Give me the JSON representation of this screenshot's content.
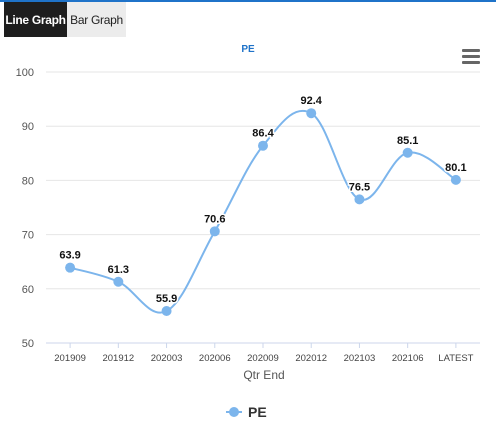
{
  "tabs": [
    {
      "label": "Line Graph",
      "active": true
    },
    {
      "label": "Bar Graph",
      "active": false
    }
  ],
  "menu_icon": "hamburger-menu-icon",
  "colors": {
    "accent": "#1f73c9",
    "series": "#7cb5ec",
    "title": "#1f73c9"
  },
  "chart_data": {
    "type": "line",
    "title": "PE",
    "xlabel": "Qtr End",
    "ylabel": "",
    "ylim": [
      50,
      100
    ],
    "yticks": [
      50,
      60,
      70,
      80,
      90,
      100
    ],
    "categories": [
      "201909",
      "201912",
      "202003",
      "202006",
      "202009",
      "202012",
      "202103",
      "202106",
      "LATEST"
    ],
    "series": [
      {
        "name": "PE",
        "values": [
          63.9,
          61.3,
          55.9,
          70.6,
          86.4,
          92.4,
          76.5,
          85.1,
          80.1
        ]
      }
    ],
    "value_labels": [
      "63.9",
      "61.3",
      "55.9",
      "70.6",
      "86.4",
      "92.4",
      "76.5",
      "85.1",
      "80.1"
    ],
    "grid": true,
    "smooth": true,
    "legend": "bottom-center"
  }
}
